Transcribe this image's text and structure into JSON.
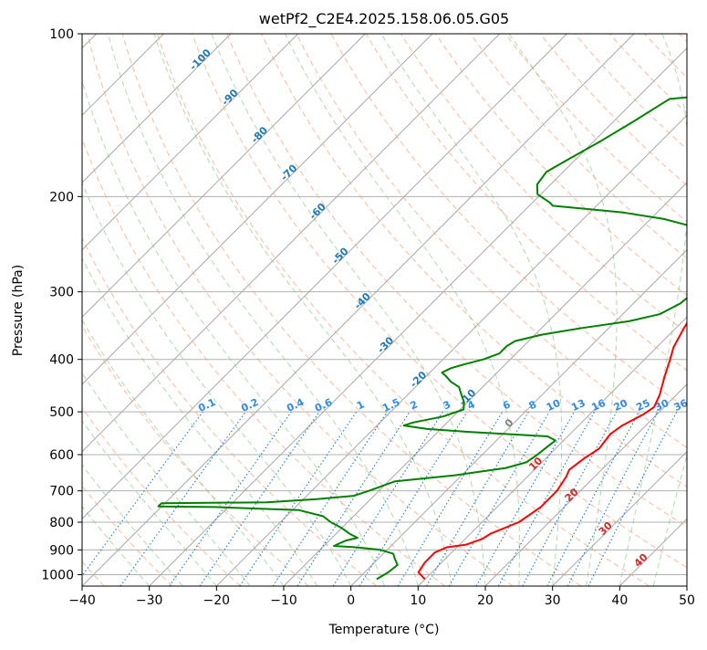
{
  "chart_data": {
    "type": "line",
    "title": "wetPf2_C2E4.2025.158.06.05.G05",
    "xlabel": "Temperature (°C)",
    "ylabel": "Pressure (hPa)",
    "xlim": [
      -40,
      50
    ],
    "ylim": [
      1050,
      100
    ],
    "y_scale": "log",
    "grid": true,
    "x_ticks": [
      "−40",
      "−30",
      "−20",
      "−10",
      "0",
      "10",
      "20",
      "30",
      "40",
      "50"
    ],
    "y_ticks": [
      "100",
      "200",
      "300",
      "400",
      "500",
      "600",
      "700",
      "800",
      "900",
      "1000"
    ],
    "x_tick_values": [
      -40,
      -30,
      -20,
      -10,
      0,
      10,
      20,
      30,
      40,
      50
    ],
    "y_tick_values": [
      100,
      200,
      300,
      400,
      500,
      600,
      700,
      800,
      900,
      1000
    ],
    "series": [
      {
        "color": "#ff0000",
        "points": [
          [
            10.0,
            1020
          ],
          [
            8,
            990
          ],
          [
            7.5,
            950
          ],
          [
            7.5,
            910
          ],
          [
            8.5,
            890
          ],
          [
            11,
            880
          ],
          [
            12.5,
            860
          ],
          [
            13,
            840
          ],
          [
            15.5,
            800
          ],
          [
            16.5,
            750
          ],
          [
            16.5,
            700
          ],
          [
            15.8,
            660
          ],
          [
            15.2,
            640
          ],
          [
            15.7,
            610
          ],
          [
            16.5,
            585
          ],
          [
            16.3,
            570
          ],
          [
            16,
            550
          ],
          [
            16.5,
            530
          ],
          [
            18,
            505
          ],
          [
            18.5,
            490
          ],
          [
            17.5,
            465
          ],
          [
            15.5,
            430
          ],
          [
            13.8,
            400
          ],
          [
            12.5,
            380
          ],
          [
            11.2,
            350
          ],
          [
            10,
            320
          ],
          [
            9,
            295
          ],
          [
            8,
            270
          ],
          [
            6.5,
            250
          ],
          [
            5.3,
            235
          ],
          [
            5.3,
            220
          ],
          [
            6,
            210
          ],
          [
            8,
            200
          ],
          [
            9.5,
            190
          ],
          [
            10.3,
            182
          ],
          [
            9.5,
            170
          ],
          [
            9.3,
            160
          ],
          [
            9.8,
            150
          ],
          [
            9.5,
            140
          ],
          [
            9.8,
            130
          ],
          [
            10.5,
            122
          ],
          [
            12,
            115
          ],
          [
            13.3,
            110
          ],
          [
            13.8,
            105
          ],
          [
            13.8,
            100
          ]
        ]
      },
      {
        "color": "#008000",
        "points": [
          [
            2.8,
            1020
          ],
          [
            3.5,
            990
          ],
          [
            3.8,
            960
          ],
          [
            2.5,
            935
          ],
          [
            1.5,
            915
          ],
          [
            -1,
            900
          ],
          [
            -5,
            890
          ],
          [
            -8.5,
            885
          ],
          [
            -7.5,
            865
          ],
          [
            -6.2,
            855
          ],
          [
            -8,
            840
          ],
          [
            -10,
            820
          ],
          [
            -12.5,
            800
          ],
          [
            -14.5,
            780
          ],
          [
            -19,
            760
          ],
          [
            -32,
            750
          ],
          [
            -40.5,
            748
          ],
          [
            -40.5,
            738
          ],
          [
            -25,
            735
          ],
          [
            -18,
            725
          ],
          [
            -13,
            715
          ],
          [
            -11.5,
            700
          ],
          [
            -9,
            672
          ],
          [
            -1,
            655
          ],
          [
            5.5,
            635
          ],
          [
            7.7,
            620
          ],
          [
            8.2,
            600
          ],
          [
            8.5,
            580
          ],
          [
            8.8,
            565
          ],
          [
            7,
            555
          ],
          [
            -5,
            545
          ],
          [
            -12,
            538
          ],
          [
            -16,
            530
          ],
          [
            -15,
            523
          ],
          [
            -11.5,
            510
          ],
          [
            -9.5,
            495
          ],
          [
            -10.5,
            480
          ],
          [
            -12,
            465
          ],
          [
            -13.5,
            450
          ],
          [
            -15.5,
            440
          ],
          [
            -17,
            430
          ],
          [
            -18.2,
            423
          ],
          [
            -17.5,
            415
          ],
          [
            -16,
            408
          ],
          [
            -14,
            400
          ],
          [
            -12.5,
            390
          ],
          [
            -12.5,
            378
          ],
          [
            -12,
            370
          ],
          [
            -9,
            360
          ],
          [
            -4,
            350
          ],
          [
            2,
            340
          ],
          [
            5.5,
            330
          ],
          [
            7,
            315
          ],
          [
            7.5,
            295
          ],
          [
            7.3,
            282
          ],
          [
            6,
            272
          ],
          [
            4,
            262
          ],
          [
            3,
            250
          ],
          [
            1.5,
            238
          ],
          [
            -2,
            228
          ],
          [
            -8,
            220
          ],
          [
            -15,
            214
          ],
          [
            -26.5,
            208
          ],
          [
            -27.5,
            205
          ],
          [
            -30.5,
            198
          ],
          [
            -32,
            190
          ],
          [
            -32.5,
            180
          ],
          [
            -31,
            170
          ],
          [
            -29,
            158
          ],
          [
            -27,
            145
          ],
          [
            -25.5,
            135
          ],
          [
            -25,
            132
          ],
          [
            -20,
            130
          ],
          [
            -16,
            128
          ],
          [
            -13,
            124
          ],
          [
            -11,
            120
          ],
          [
            -10,
            116
          ],
          [
            -8,
            113
          ],
          [
            -6,
            110
          ],
          [
            -4,
            107
          ],
          [
            -2,
            103
          ],
          [
            -0.5,
            100
          ]
        ]
      }
    ],
    "mixing_ratio_labels": [
      "0.1",
      "0.2",
      "0.4",
      "0.6",
      "1",
      "1.5",
      "2",
      "3",
      "4",
      "6",
      "8",
      "10",
      "13",
      "16",
      "20",
      "25",
      "30",
      "36"
    ],
    "isotherm_labels": [
      "-100",
      "-90",
      "-80",
      "-70",
      "-60",
      "-50",
      "-40",
      "-30",
      "-20",
      "-10",
      "0",
      "10",
      "20",
      "30",
      "40"
    ]
  }
}
